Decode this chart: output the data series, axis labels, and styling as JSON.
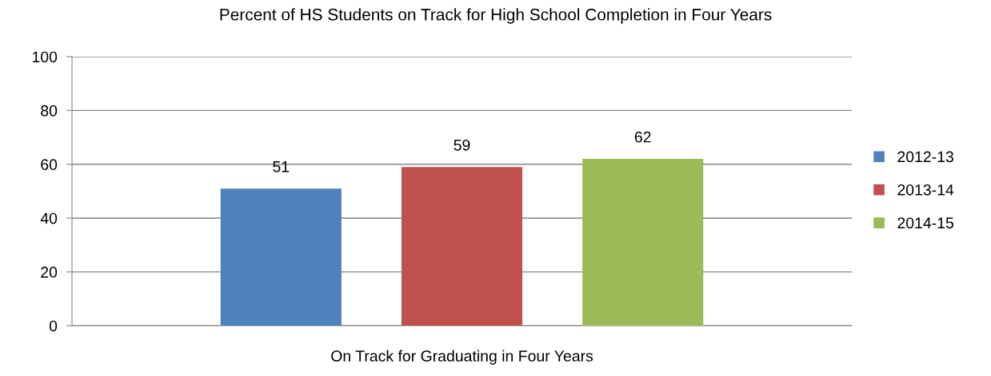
{
  "chart_data": {
    "type": "bar",
    "title": "Percent of HS Students on Track for High School Completion in Four Years",
    "categories": [
      "On Track for Graduating in Four Years"
    ],
    "series": [
      {
        "name": "2012-13",
        "color": "#4f81bd",
        "values": [
          51
        ]
      },
      {
        "name": "2013-14",
        "color": "#c0504d",
        "values": [
          59
        ]
      },
      {
        "name": "2014-15",
        "color": "#9bbb59",
        "values": [
          62
        ]
      }
    ],
    "ylim": [
      0,
      100
    ],
    "yticks": [
      0,
      20,
      40,
      60,
      80,
      100
    ],
    "grid": "y",
    "legend": "right",
    "data_labels": true
  }
}
